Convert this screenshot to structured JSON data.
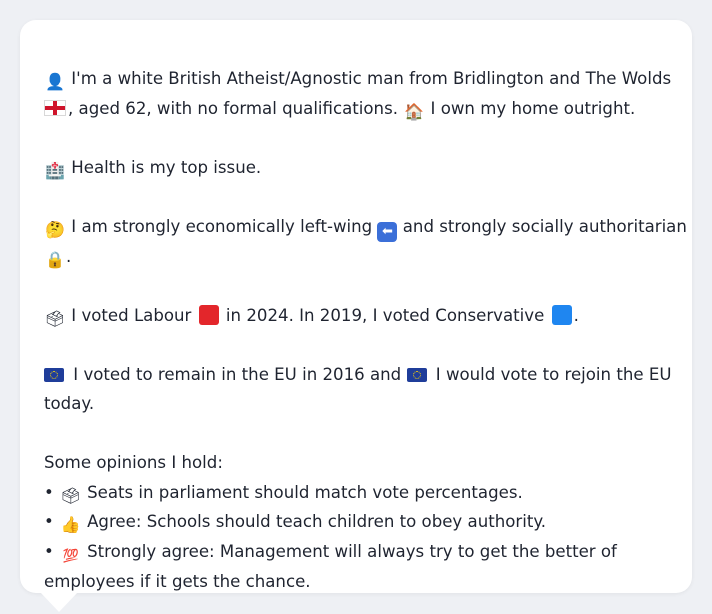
{
  "profile": {
    "p1_line1_after_icon": " I'm a white British Atheist/Agnostic man from Bridlington and The Wolds",
    "p1_line2_text": ", aged 62, with no formal qualifications. ",
    "p1_line2_tail": " I own my home outright.",
    "health": " Health is my top issue.",
    "econ_line1": " I am strongly economically left-wing ",
    "econ_line1_tail": " and strongly socially authoritarian",
    "econ_line2_tail": ".",
    "vote_a": " I voted Labour ",
    "vote_b": " in 2024. In 2019, I voted Conservative ",
    "vote_c": ".",
    "eu_a": " I voted to remain in the EU in 2016 and ",
    "eu_b": " I would vote to rejoin the EU",
    "eu_c": "today.",
    "opinions_heading": "Some opinions I hold:",
    "op1": " Seats in parliament should match vote percentages.",
    "op2": " Agree: Schools should teach children to obey authority.",
    "op3_line1": " Strongly agree: Management will always try to get the better of",
    "op3_line2": "employees if it gets the chance.",
    "bullet_char": "•"
  },
  "icons": {
    "person": "👤",
    "house": "🏠",
    "hospital": "🏥",
    "thinking": "🤔",
    "arrow_left": "⬅",
    "lock": "🔒",
    "ballot": "🗳",
    "thumbs_up": "👍",
    "hundred": "💯"
  },
  "colors": {
    "labour": "#e3262b",
    "conservative": "#1f86f0",
    "text": "#1f2430",
    "background": "#eef0f4",
    "card": "#ffffff"
  }
}
